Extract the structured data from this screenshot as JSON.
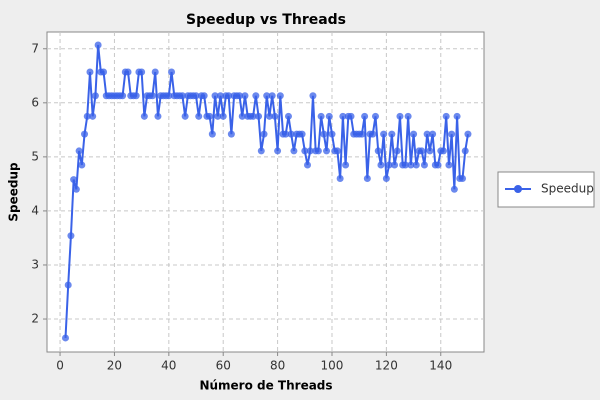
{
  "chart_data": {
    "type": "line",
    "title": "Speedup vs Threads",
    "x_label": "Número de Threads",
    "y_label": "Speedup",
    "xlim": [
      -4.8,
      155.9
    ],
    "ylim": [
      1.39,
      7.31
    ],
    "xticks": [
      0,
      20,
      40,
      60,
      80,
      100,
      120,
      140
    ],
    "yticks": [
      2,
      3,
      4,
      5,
      6,
      7
    ],
    "grid": true,
    "legend": "right",
    "x": [
      2,
      3,
      4,
      5,
      6,
      7,
      8,
      9,
      10,
      11,
      12,
      13,
      14,
      15,
      16,
      17,
      18,
      19,
      20,
      21,
      22,
      23,
      24,
      25,
      26,
      27,
      28,
      29,
      30,
      31,
      32,
      33,
      34,
      35,
      36,
      37,
      38,
      39,
      40,
      41,
      42,
      43,
      44,
      45,
      46,
      47,
      48,
      49,
      50,
      51,
      52,
      53,
      54,
      55,
      56,
      57,
      58,
      59,
      60,
      61,
      62,
      63,
      64,
      65,
      66,
      67,
      68,
      69,
      70,
      71,
      72,
      73,
      74,
      75,
      76,
      77,
      78,
      79,
      80,
      81,
      82,
      83,
      84,
      85,
      86,
      87,
      88,
      89,
      90,
      91,
      92,
      93,
      94,
      95,
      96,
      97,
      98,
      99,
      100,
      101,
      102,
      103,
      104,
      105,
      106,
      107,
      108,
      109,
      110,
      111,
      112,
      113,
      114,
      115,
      116,
      117,
      118,
      119,
      120,
      121,
      122,
      123,
      124,
      125,
      126,
      127,
      128,
      129,
      130,
      131,
      132,
      133,
      134,
      135,
      136,
      137,
      138,
      139,
      140,
      141,
      142,
      143,
      144,
      145,
      146,
      147,
      148,
      149,
      150
    ],
    "series": [
      {
        "name": "Speedup",
        "color": "#3a62e8",
        "values": [
          1.65,
          2.63,
          3.54,
          4.58,
          4.4,
          5.11,
          4.85,
          5.42,
          5.75,
          6.57,
          5.75,
          6.13,
          7.07,
          6.57,
          6.57,
          6.13,
          6.13,
          6.13,
          6.13,
          6.13,
          6.13,
          6.13,
          6.57,
          6.57,
          6.13,
          6.13,
          6.13,
          6.57,
          6.57,
          5.75,
          6.13,
          6.13,
          6.13,
          6.57,
          5.75,
          6.13,
          6.13,
          6.13,
          6.13,
          6.57,
          6.13,
          6.13,
          6.13,
          6.13,
          5.75,
          6.13,
          6.13,
          6.13,
          6.13,
          5.75,
          6.13,
          6.13,
          5.75,
          5.75,
          5.42,
          6.13,
          5.75,
          6.13,
          5.75,
          6.13,
          6.13,
          5.42,
          6.13,
          6.13,
          6.13,
          5.75,
          6.13,
          5.75,
          5.75,
          5.75,
          6.13,
          5.75,
          5.11,
          5.42,
          6.13,
          5.75,
          6.13,
          5.75,
          5.11,
          6.13,
          5.42,
          5.42,
          5.75,
          5.42,
          5.11,
          5.42,
          5.42,
          5.42,
          5.11,
          4.85,
          5.11,
          6.13,
          5.11,
          5.11,
          5.75,
          5.42,
          5.11,
          5.75,
          5.42,
          5.11,
          5.11,
          4.6,
          5.75,
          4.85,
          5.75,
          5.75,
          5.42,
          5.42,
          5.42,
          5.42,
          5.75,
          4.6,
          5.42,
          5.42,
          5.75,
          5.11,
          4.85,
          5.42,
          4.6,
          4.85,
          5.42,
          4.85,
          5.11,
          5.75,
          4.85,
          4.85,
          5.75,
          4.85,
          5.42,
          4.85,
          5.11,
          5.11,
          4.85,
          5.42,
          5.11,
          5.42,
          4.85,
          4.85,
          5.11,
          5.11,
          5.75,
          4.85,
          5.42,
          4.4,
          5.75,
          4.6,
          4.6,
          5.11,
          5.42
        ]
      }
    ]
  }
}
